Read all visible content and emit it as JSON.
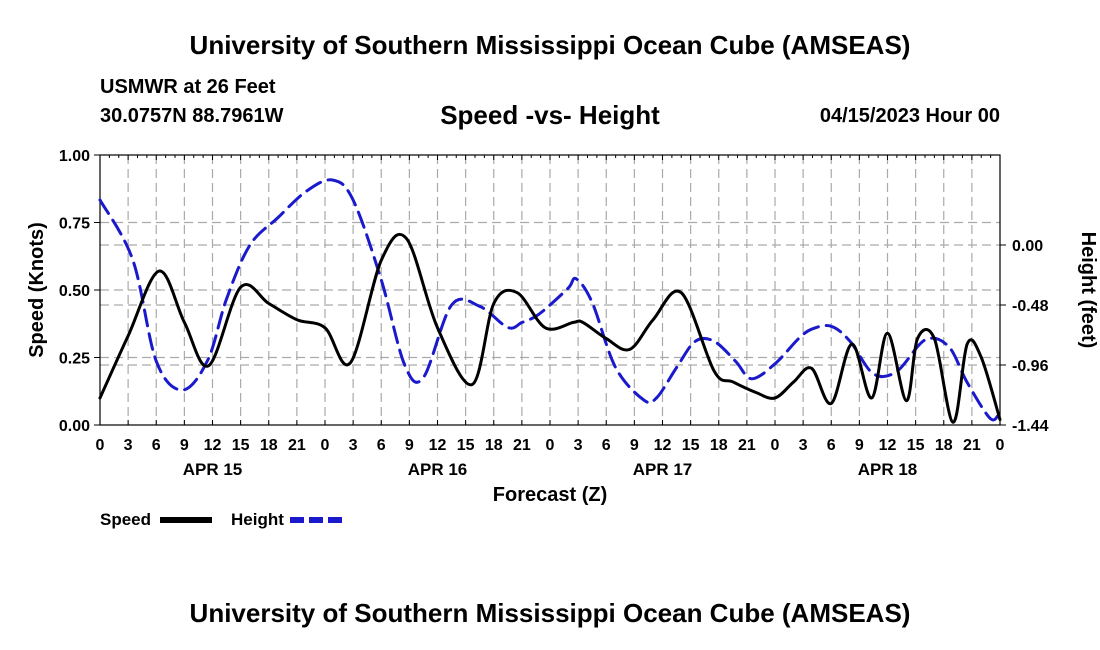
{
  "header": {
    "title": "University of Southern Mississippi Ocean Cube (AMSEAS)",
    "station": "USMWR at 26 Feet",
    "coords": "30.0757N  88.7961W",
    "subtitle": "Speed -vs- Height",
    "datetime": "04/15/2023 Hour 00"
  },
  "footer": {
    "title": "University of Southern Mississippi Ocean Cube (AMSEAS)"
  },
  "chart_data": {
    "type": "line",
    "title": "Speed -vs- Height",
    "xlabel": "Forecast (Z)",
    "ylabel": "Speed (Knots)",
    "y2label": "Height (feet)",
    "xlim": [
      0,
      96
    ],
    "ylim": [
      0,
      1
    ],
    "y2lim": [
      -1.44,
      0.72
    ],
    "grid": true,
    "x_ticks": [
      0,
      3,
      6,
      9,
      12,
      15,
      18,
      21,
      24,
      27,
      30,
      33,
      36,
      39,
      42,
      45,
      48,
      51,
      54,
      57,
      60,
      63,
      66,
      69,
      72,
      75,
      78,
      81,
      84,
      87,
      90,
      93,
      96
    ],
    "x_tick_labels": [
      "0",
      "3",
      "6",
      "9",
      "12",
      "15",
      "18",
      "21",
      "0",
      "3",
      "6",
      "9",
      "12",
      "15",
      "18",
      "21",
      "0",
      "3",
      "6",
      "9",
      "12",
      "15",
      "18",
      "21",
      "0",
      "3",
      "6",
      "9",
      "12",
      "15",
      "18",
      "21",
      "0"
    ],
    "day_labels": [
      {
        "x": 12,
        "label": "APR 15"
      },
      {
        "x": 36,
        "label": "APR 16"
      },
      {
        "x": 60,
        "label": "APR 17"
      },
      {
        "x": 84,
        "label": "APR 18"
      }
    ],
    "y_ticks": [
      0,
      0.25,
      0.5,
      0.75,
      1.0
    ],
    "y_tick_labels": [
      "0.00",
      "0.25",
      "0.50",
      "0.75",
      "1.00"
    ],
    "y2_ticks": [
      0.0,
      -0.48,
      -0.96,
      -1.44
    ],
    "y2_tick_labels": [
      "0.00",
      "-0.48",
      "-0.96",
      "-1.44"
    ],
    "legend_placement": "bottom-left",
    "series": [
      {
        "name": "Speed",
        "axis": "left",
        "color": "#000000",
        "dash": "solid",
        "x": [
          0,
          3,
          6.3,
          9,
          11.6,
          15,
          18,
          21,
          24,
          26.7,
          30,
          32.7,
          36,
          39.7,
          42,
          44.5,
          47.5,
          50.5,
          51.5,
          54,
          56.5,
          59,
          62,
          65.5,
          67.5,
          70,
          72,
          74,
          75.9,
          78,
          80.2,
          82.3,
          84,
          86,
          87.2,
          89,
          91,
          92.5,
          94,
          96
        ],
        "y": [
          0.1,
          0.33,
          0.57,
          0.38,
          0.22,
          0.51,
          0.45,
          0.39,
          0.36,
          0.23,
          0.61,
          0.69,
          0.36,
          0.15,
          0.45,
          0.49,
          0.36,
          0.38,
          0.38,
          0.32,
          0.28,
          0.39,
          0.49,
          0.2,
          0.16,
          0.12,
          0.1,
          0.16,
          0.21,
          0.08,
          0.3,
          0.1,
          0.34,
          0.09,
          0.32,
          0.32,
          0.01,
          0.3,
          0.25,
          0.02
        ]
      },
      {
        "name": "Height",
        "axis": "right",
        "color": "#1a1acc",
        "dash": "dashed",
        "x": [
          0,
          3.5,
          6,
          8.8,
          11.5,
          13.5,
          16,
          19,
          22,
          24.8,
          27,
          30,
          32.5,
          34.5,
          37.5,
          40.5,
          43.5,
          45,
          46.5,
          48,
          50,
          50.8,
          52.5,
          55,
          58,
          59.4,
          61.5,
          63.5,
          65.5,
          67.8,
          69.5,
          72,
          74.5,
          76,
          78,
          80,
          82.5,
          85,
          88,
          90.5,
          92.5,
          95,
          96
        ],
        "y": [
          0.36,
          -0.12,
          -0.93,
          -1.16,
          -0.92,
          -0.43,
          0.0,
          0.22,
          0.43,
          0.52,
          0.36,
          -0.28,
          -0.96,
          -1.06,
          -0.48,
          -0.49,
          -0.66,
          -0.62,
          -0.57,
          -0.48,
          -0.34,
          -0.27,
          -0.46,
          -0.98,
          -1.24,
          -1.22,
          -0.98,
          -0.77,
          -0.77,
          -0.93,
          -1.07,
          -0.95,
          -0.75,
          -0.67,
          -0.65,
          -0.77,
          -1.03,
          -1.01,
          -0.76,
          -0.81,
          -1.1,
          -1.39,
          -1.33
        ]
      }
    ]
  }
}
